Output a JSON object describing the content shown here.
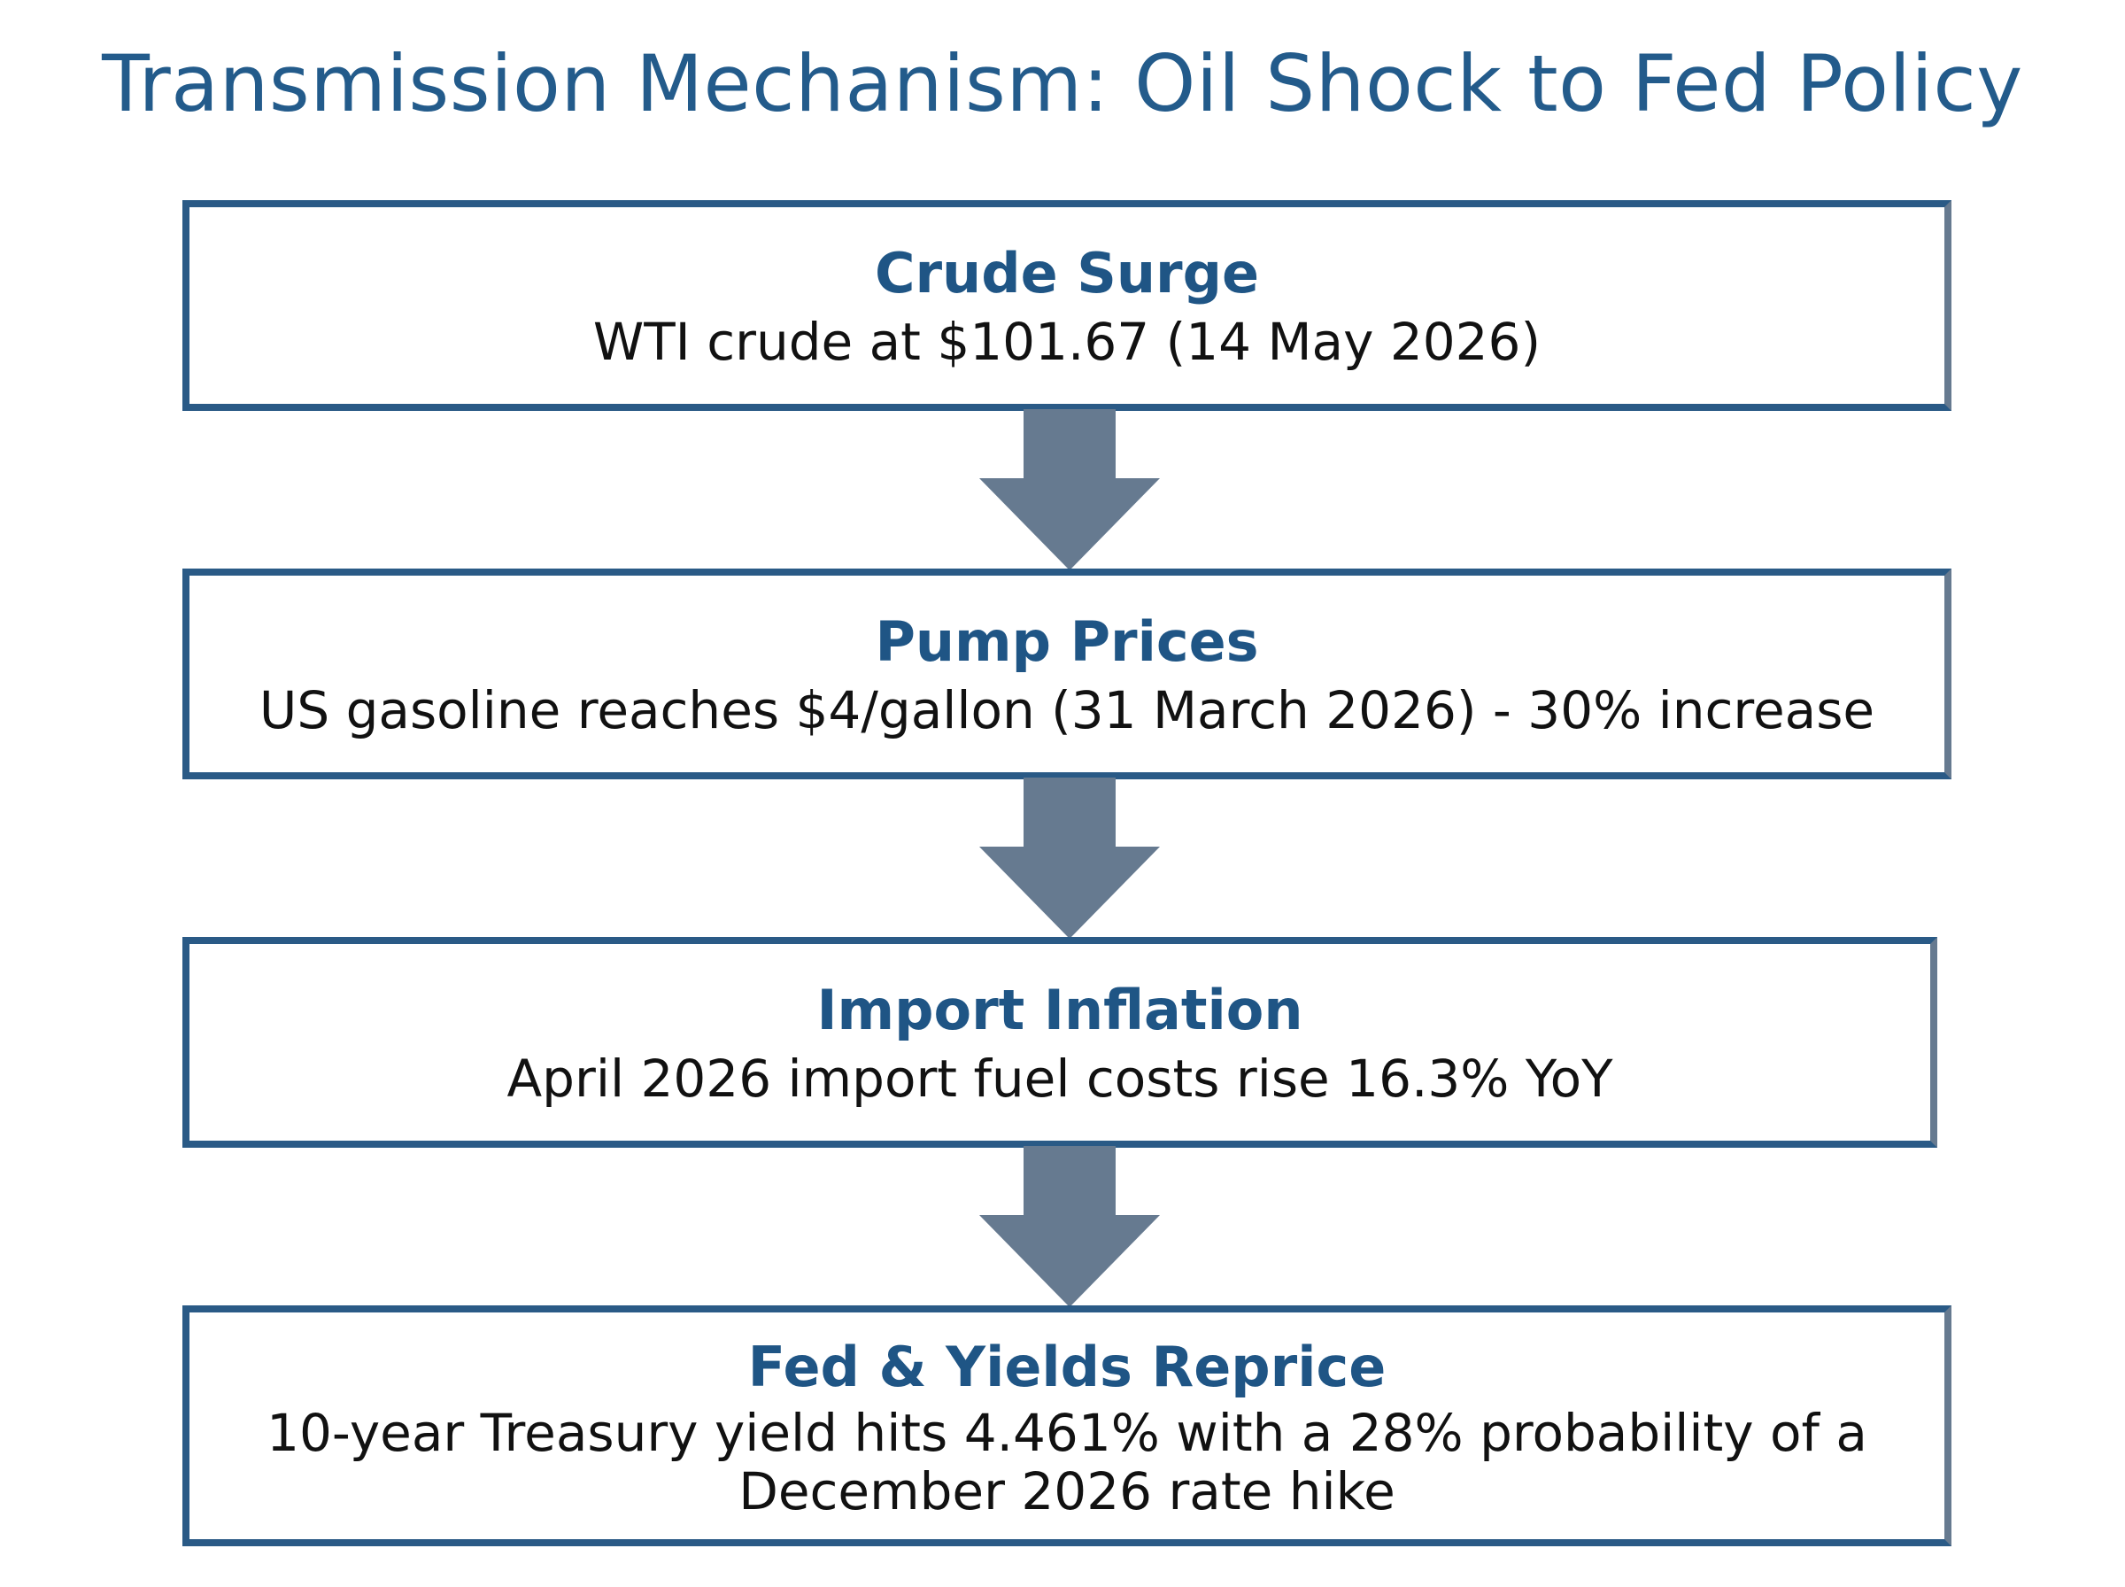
{
  "title": "Transmission Mechanism: Oil Shock to Fed Policy",
  "colors": {
    "title": "#235b8b",
    "heading": "#1f5585",
    "border": "#2a5a86",
    "arrow": "#667a90"
  },
  "steps": [
    {
      "heading": "Crude Surge",
      "text": "WTI crude at $101.67 (14 May 2026)"
    },
    {
      "heading": "Pump Prices",
      "text": "US gasoline reaches $4/gallon (31 March 2026) - 30% increase"
    },
    {
      "heading": "Import Inflation",
      "text": "April 2026 import fuel costs rise 16.3% YoY"
    },
    {
      "heading": "Fed & Yields Reprice",
      "text": "10-year Treasury yield hits 4.461% with a 28% probability of a December 2026 rate hike"
    }
  ]
}
